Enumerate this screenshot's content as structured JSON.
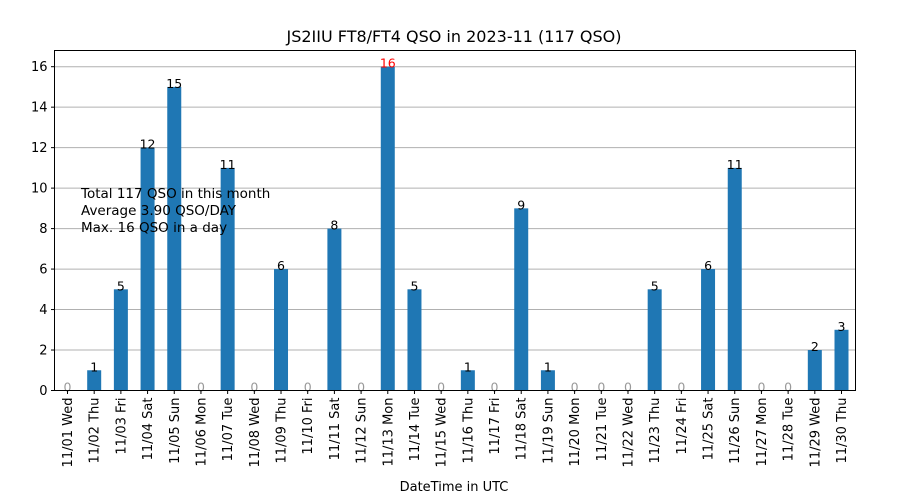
{
  "chart_data": {
    "type": "bar",
    "title": "JS2IIU FT8/FT4 QSO in 2023-11 (117 QSO)",
    "xlabel": "DateTime in UTC",
    "ylabel": "",
    "ylim": [
      0,
      16.8
    ],
    "yticks": [
      0,
      2,
      4,
      6,
      8,
      10,
      12,
      14,
      16
    ],
    "grid": "y",
    "categories": [
      "11/01 Wed",
      "11/02 Thu",
      "11/03 Fri",
      "11/04 Sat",
      "11/05 Sun",
      "11/06 Mon",
      "11/07 Tue",
      "11/08 Wed",
      "11/09 Thu",
      "11/10 Fri",
      "11/11 Sat",
      "11/12 Sun",
      "11/13 Mon",
      "11/14 Tue",
      "11/15 Wed",
      "11/16 Thu",
      "11/17 Fri",
      "11/18 Sat",
      "11/19 Sun",
      "11/20 Mon",
      "11/21 Tue",
      "11/22 Wed",
      "11/23 Thu",
      "11/24 Fri",
      "11/25 Sat",
      "11/26 Sun",
      "11/27 Mon",
      "11/28 Tue",
      "11/29 Wed",
      "11/30 Thu"
    ],
    "values": [
      0,
      1,
      5,
      12,
      15,
      0,
      11,
      0,
      6,
      0,
      8,
      0,
      16,
      5,
      0,
      1,
      0,
      9,
      1,
      0,
      0,
      0,
      5,
      0,
      6,
      11,
      0,
      0,
      2,
      3
    ],
    "annotations": [
      "Total 117 QSO in this month",
      "Average 3.90 QSO/DAY",
      "Max. 16 QSO in a day"
    ],
    "colors": {
      "bar": "#1f77b4",
      "max_label": "#ff0000",
      "zero_label": "#999999",
      "label": "#000000",
      "grid": "#b0b0b0"
    }
  }
}
